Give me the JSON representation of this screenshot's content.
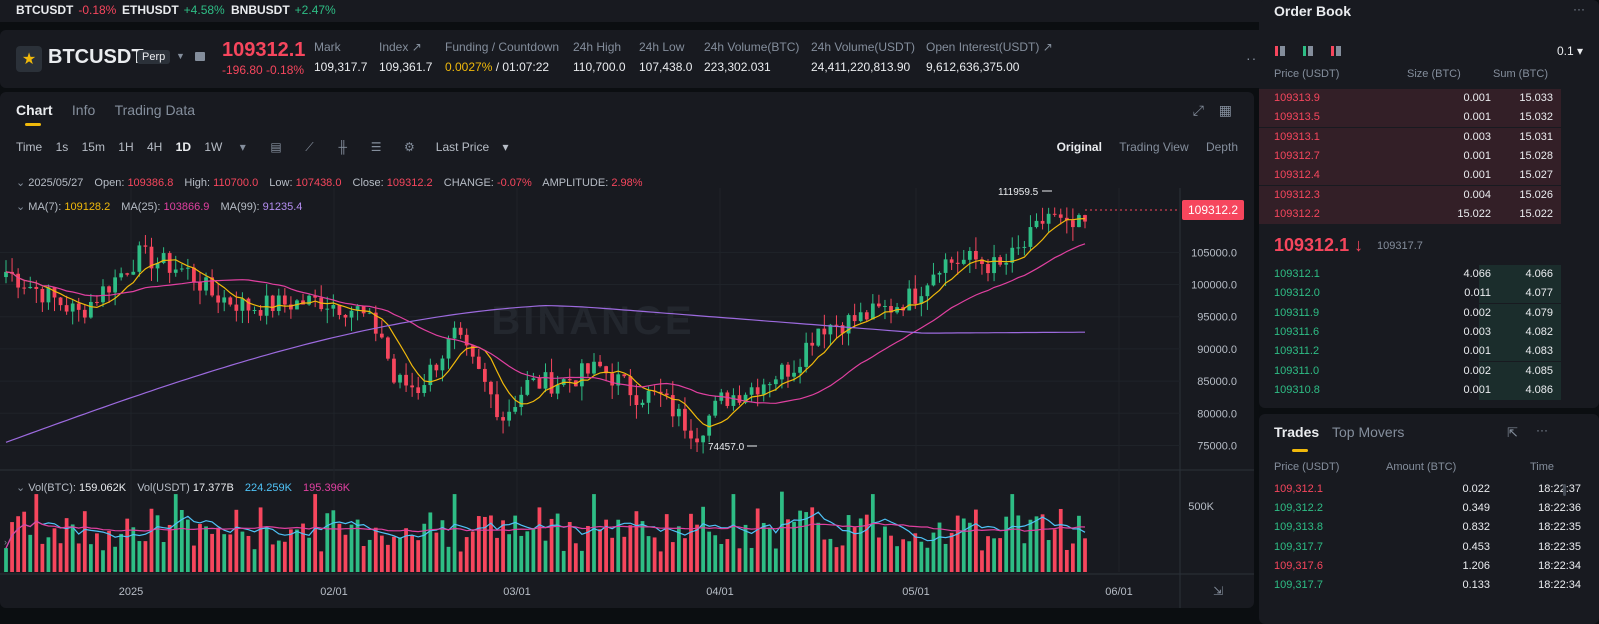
{
  "ticker": [
    {
      "symbol": "BTCUSDT",
      "change": "-0.18%",
      "dir": "down"
    },
    {
      "symbol": "ETHUSDT",
      "change": "+4.58%",
      "dir": "up"
    },
    {
      "symbol": "BNBUSDT",
      "change": "+2.47%",
      "dir": "up"
    }
  ],
  "header": {
    "symbol": "BTCUSDT",
    "contract_type": "Perp",
    "last_price": "109312.1",
    "change": "-196.80 -0.18%",
    "stats": [
      {
        "label": "Mark",
        "value": "109,317.7"
      },
      {
        "label": "Index ↗",
        "value": "109,361.7"
      },
      {
        "label": "Funding / Countdown",
        "value": "0.0027%",
        "value2": "/ 01:07:22"
      },
      {
        "label": "24h High",
        "value": "110,700.0"
      },
      {
        "label": "24h Low",
        "value": "107,438.0"
      },
      {
        "label": "24h Volume(BTC)",
        "value": "223,302.031"
      },
      {
        "label": "24h Volume(USDT)",
        "value": "24,411,220,813.90"
      },
      {
        "label": "Open Interest(USDT) ↗",
        "value": "9,612,636,375.00"
      }
    ]
  },
  "chart_tabs": [
    "Chart",
    "Info",
    "Trading Data"
  ],
  "toolbar": {
    "time_label": "Time",
    "intervals": [
      "1s",
      "15m",
      "1H",
      "4H",
      "1D",
      "1W"
    ],
    "active_interval": "1D",
    "price_type": "Last Price",
    "views": [
      "Original",
      "Trading View",
      "Depth"
    ]
  },
  "ohlc": {
    "date": "2025/05/27",
    "open_label": "Open:",
    "open": "109386.8",
    "high_label": "High:",
    "high": "110700.0",
    "low_label": "Low:",
    "low": "107438.0",
    "close_label": "Close:",
    "close": "109312.2",
    "change_label": "CHANGE:",
    "change": "-0.07%",
    "amplitude_label": "AMPLITUDE:",
    "amplitude": "2.98%"
  },
  "ma": {
    "ma7_label": "MA(7):",
    "ma7": "109128.2",
    "ma25_label": "MA(25):",
    "ma25": "103866.9",
    "ma99_label": "MA(99):",
    "ma99": "91235.4"
  },
  "vol": {
    "btc_label": "Vol(BTC):",
    "btc": "159.062K",
    "usdt_label": "Vol(USDT)",
    "usdt": "17.377B",
    "ma1": "224.259K",
    "ma2": "195.396K"
  },
  "chart_data": {
    "type": "candlestick",
    "y_ticks": [
      "105000.0",
      "100000.0",
      "95000.0",
      "90000.0",
      "85000.0",
      "80000.0",
      "75000.0"
    ],
    "ylim": [
      71500,
      115000
    ],
    "x_ticks": [
      "2025",
      "02/01",
      "03/01",
      "04/01",
      "05/01",
      "06/01"
    ],
    "volume_tick": "500K",
    "max_label": "111959.5",
    "min_label": "74457.0",
    "current_price": "109312.2",
    "watermark": "BINANCE",
    "colors": {
      "up": "#2ebd85",
      "down": "#f6465d",
      "ma7": "#f0b90b",
      "ma25": "#e040a0",
      "ma99": "#9c6ade"
    }
  },
  "order_book": {
    "title": "Order Book",
    "step": "0.1",
    "headers": [
      "Price (USDT)",
      "Size (BTC)",
      "Sum (BTC)"
    ],
    "asks": [
      {
        "price": "109313.9",
        "size": "0.001",
        "sum": "15.033"
      },
      {
        "price": "109313.5",
        "size": "0.001",
        "sum": "15.032"
      },
      {
        "price": "109313.1",
        "size": "0.003",
        "sum": "15.031"
      },
      {
        "price": "109312.7",
        "size": "0.001",
        "sum": "15.028"
      },
      {
        "price": "109312.4",
        "size": "0.001",
        "sum": "15.027"
      },
      {
        "price": "109312.3",
        "size": "0.004",
        "sum": "15.026"
      },
      {
        "price": "109312.2",
        "size": "15.022",
        "sum": "15.022"
      }
    ],
    "mid_price": "109312.1 ↓",
    "mark_price": "109317.7",
    "bids": [
      {
        "price": "109312.1",
        "size": "4.066",
        "sum": "4.066"
      },
      {
        "price": "109312.0",
        "size": "0.011",
        "sum": "4.077"
      },
      {
        "price": "109311.9",
        "size": "0.002",
        "sum": "4.079"
      },
      {
        "price": "109311.6",
        "size": "0.003",
        "sum": "4.082"
      },
      {
        "price": "109311.2",
        "size": "0.001",
        "sum": "4.083"
      },
      {
        "price": "109311.0",
        "size": "0.002",
        "sum": "4.085"
      },
      {
        "price": "109310.8",
        "size": "0.001",
        "sum": "4.086"
      }
    ]
  },
  "trades": {
    "tabs": [
      "Trades",
      "Top Movers"
    ],
    "headers": [
      "Price (USDT)",
      "Amount (BTC)",
      "Time"
    ],
    "rows": [
      {
        "price": "109,312.1",
        "amount": "0.022",
        "time": "18:22:37",
        "dir": "down"
      },
      {
        "price": "109,312.2",
        "amount": "0.349",
        "time": "18:22:36",
        "dir": "up"
      },
      {
        "price": "109,313.8",
        "amount": "0.832",
        "time": "18:22:35",
        "dir": "up"
      },
      {
        "price": "109,317.7",
        "amount": "0.453",
        "time": "18:22:35",
        "dir": "up"
      },
      {
        "price": "109,317.6",
        "amount": "1.206",
        "time": "18:22:34",
        "dir": "down"
      },
      {
        "price": "109,317.7",
        "amount": "0.133",
        "time": "18:22:34",
        "dir": "up"
      }
    ]
  }
}
